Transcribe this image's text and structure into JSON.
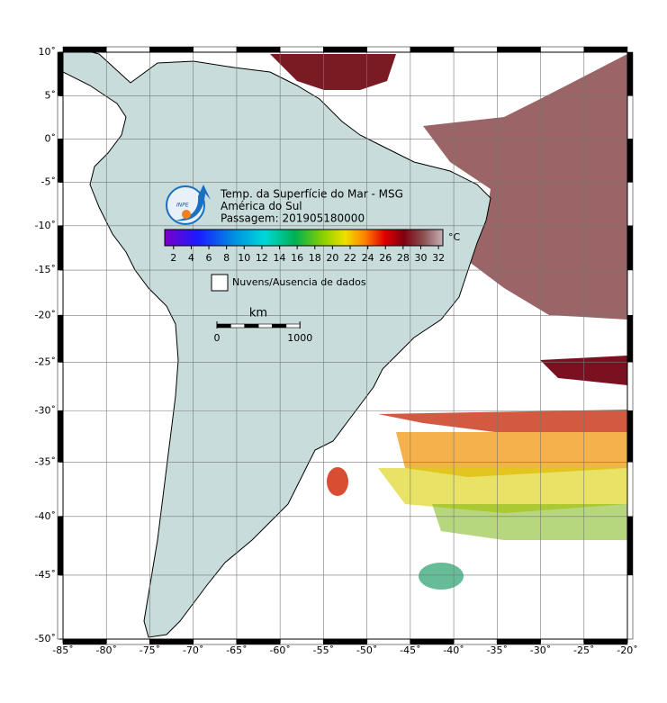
{
  "map": {
    "title_lines": [
      "Temp. da Superfície do Mar - MSG",
      "América do Sul",
      "Passagem: 201905180000"
    ],
    "logo_text": "INPE",
    "xlim": [
      -85,
      -20
    ],
    "ylim": [
      10,
      -50
    ],
    "xticks": [
      {
        "value": -85,
        "label": "-85˚"
      },
      {
        "value": -80,
        "label": "-80˚"
      },
      {
        "value": -75,
        "label": "-75˚"
      },
      {
        "value": -70,
        "label": "-70˚"
      },
      {
        "value": -65,
        "label": "-65˚"
      },
      {
        "value": -60,
        "label": "-60˚"
      },
      {
        "value": -55,
        "label": "-55˚"
      },
      {
        "value": -50,
        "label": "-50˚"
      },
      {
        "value": -45,
        "label": "-45˚"
      },
      {
        "value": -40,
        "label": "-40˚"
      },
      {
        "value": -35,
        "label": "-35˚"
      },
      {
        "value": -30,
        "label": "-30˚"
      },
      {
        "value": -25,
        "label": "-25˚"
      },
      {
        "value": -20,
        "label": "-20˚"
      }
    ],
    "yticks": [
      {
        "value": 10,
        "label": "10˚"
      },
      {
        "value": 5,
        "label": "5˚"
      },
      {
        "value": 0,
        "label": "0˚"
      },
      {
        "value": -5,
        "label": "-5˚"
      },
      {
        "value": -10,
        "label": "-10˚"
      },
      {
        "value": -15,
        "label": "-15˚"
      },
      {
        "value": -20,
        "label": "-20˚"
      },
      {
        "value": -25,
        "label": "-25˚"
      },
      {
        "value": -30,
        "label": "-30˚"
      },
      {
        "value": -35,
        "label": "-35˚"
      },
      {
        "value": -40,
        "label": "-40˚"
      },
      {
        "value": -45,
        "label": "-45˚"
      },
      {
        "value": -50,
        "label": "-50˚"
      }
    ],
    "grid": true,
    "colorbar": {
      "unit": "°C",
      "clim": [
        1,
        32.5
      ],
      "ticks": [
        2,
        4,
        6,
        8,
        10,
        12,
        14,
        16,
        18,
        20,
        22,
        24,
        26,
        28,
        30,
        32
      ]
    },
    "legend": "Nuvens/Ausencia de dados",
    "scale": {
      "unit": "km",
      "ticks": [
        0,
        1000
      ]
    }
  }
}
